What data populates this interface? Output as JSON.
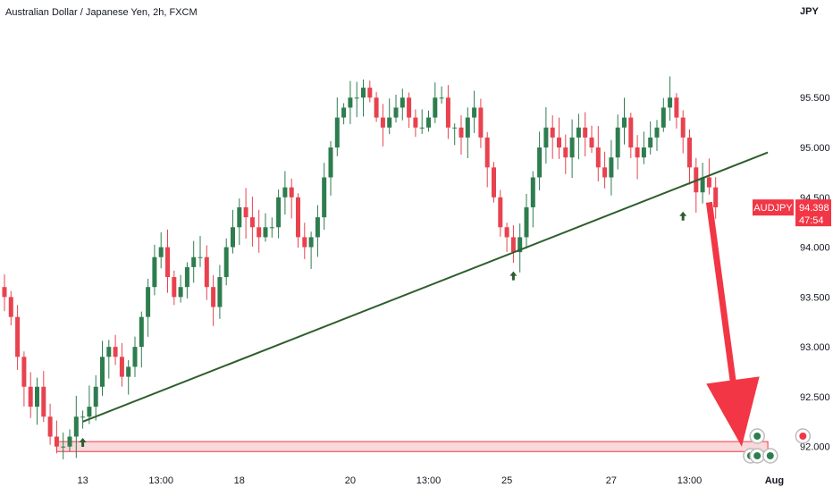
{
  "chart_data": {
    "type": "candlestick",
    "title": "Australian Dollar / Japanese Yen, 2h, FXCM",
    "symbol": "AUDJPY",
    "currency_label": "JPY",
    "last_price": "94.398",
    "countdown": "47:54",
    "y_range": [
      91.8,
      96.3
    ],
    "y_ticks": [
      {
        "value": 92.0,
        "label": "92.000"
      },
      {
        "value": 92.5,
        "label": "92.500"
      },
      {
        "value": 93.0,
        "label": "93.000"
      },
      {
        "value": 93.5,
        "label": "93.500"
      },
      {
        "value": 94.0,
        "label": "94.000"
      },
      {
        "value": 94.5,
        "label": "94.500"
      },
      {
        "value": 95.0,
        "label": "95.000"
      },
      {
        "value": 95.5,
        "label": "95.500"
      }
    ],
    "x_ticks": [
      {
        "index": 12,
        "label": "13"
      },
      {
        "index": 24,
        "label": "13:00"
      },
      {
        "index": 36,
        "label": "18"
      },
      {
        "index": 53,
        "label": "20"
      },
      {
        "index": 65,
        "label": "13:00"
      },
      {
        "index": 77,
        "label": "25"
      },
      {
        "index": 93,
        "label": "27"
      },
      {
        "index": 105,
        "label": "13:00"
      },
      {
        "index": 118,
        "label": "Aug"
      }
    ],
    "colors": {
      "up": "#2e7d4f",
      "down": "#e8424f",
      "trendline": "#2e5e2e",
      "arrow": "#f23645",
      "support_zone": "#f8c9cc"
    },
    "closes": [
      93.5,
      93.3,
      92.9,
      92.6,
      92.4,
      92.6,
      92.3,
      92.1,
      92.0,
      92.0,
      92.1,
      92.3,
      92.3,
      92.4,
      92.6,
      92.9,
      93.0,
      92.9,
      92.7,
      92.8,
      93.0,
      93.3,
      93.6,
      93.9,
      94.0,
      93.7,
      93.5,
      93.6,
      93.8,
      93.9,
      93.9,
      93.6,
      93.4,
      93.7,
      94.0,
      94.2,
      94.4,
      94.3,
      94.2,
      94.1,
      94.2,
      94.2,
      94.5,
      94.6,
      94.5,
      94.1,
      94.0,
      94.1,
      94.3,
      94.7,
      95.0,
      95.3,
      95.4,
      95.5,
      95.5,
      95.6,
      95.5,
      95.3,
      95.2,
      95.3,
      95.4,
      95.5,
      95.3,
      95.2,
      95.2,
      95.3,
      95.5,
      95.5,
      95.2,
      95.2,
      95.1,
      95.3,
      95.4,
      95.1,
      94.8,
      94.5,
      94.2,
      94.1,
      93.95,
      94.1,
      94.4,
      94.7,
      95.0,
      95.2,
      95.1,
      95.0,
      94.9,
      95.1,
      95.2,
      95.1,
      95.0,
      94.8,
      94.7,
      94.9,
      95.2,
      95.3,
      95.0,
      94.9,
      95.0,
      95.1,
      95.2,
      95.4,
      95.5,
      95.3,
      95.1,
      94.8,
      94.55,
      94.7,
      94.6,
      94.4
    ],
    "trendline": {
      "start": {
        "index": 12,
        "value": 92.25
      },
      "end": {
        "index": 117,
        "value": 94.95
      }
    },
    "support_zone": {
      "low": 91.95,
      "high": 92.05,
      "start_index": 8,
      "end_index": 117
    },
    "bounce_points": [
      {
        "index": 12,
        "value": 92.15
      },
      {
        "index": 78,
        "value": 93.82
      },
      {
        "index": 104,
        "value": 94.42
      }
    ],
    "projection": {
      "from": {
        "index": 108,
        "value": 94.45
      },
      "to": {
        "index": 113,
        "value": 92.0
      }
    },
    "event_icons": [
      {
        "index": 113,
        "row": 0
      },
      {
        "index": 114,
        "row": 0
      },
      {
        "index": 114,
        "row": 1
      },
      {
        "index": 116,
        "row": 0
      },
      {
        "index": 121,
        "row": 1
      }
    ]
  }
}
